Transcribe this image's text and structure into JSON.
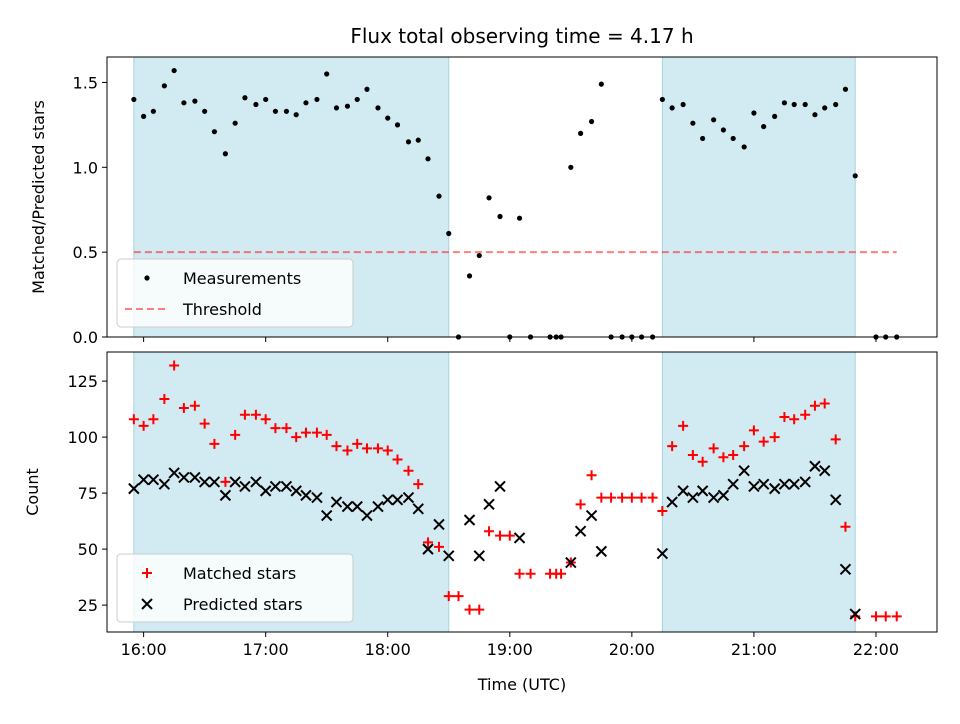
{
  "chart_data": [
    {
      "type": "scatter",
      "title": "Flux total observing time = 4.17 h",
      "ylabel": "Matched/Predicted stars",
      "xlabel": "",
      "xlim": [
        15.7,
        22.5
      ],
      "ylim": [
        0,
        1.65
      ],
      "x_ticks": [
        16,
        17,
        18,
        19,
        20,
        21,
        22
      ],
      "y_ticks": [
        0.0,
        0.5,
        1.0,
        1.5
      ],
      "y_tick_labels": [
        "0.0",
        "0.5",
        "1.0",
        "1.5"
      ],
      "shaded_spans": [
        [
          15.92,
          18.5
        ],
        [
          20.25,
          21.83
        ]
      ],
      "shade_color": "#add8e6",
      "threshold": 0.5,
      "threshold_xrange": [
        15.92,
        22.17
      ],
      "legend": {
        "position": "lower-left",
        "entries": [
          "Measurements",
          "Threshold"
        ]
      },
      "series": [
        {
          "name": "Measurements",
          "color": "#000000",
          "marker": "dot",
          "points": [
            [
              15.92,
              1.4
            ],
            [
              16.0,
              1.3
            ],
            [
              16.08,
              1.33
            ],
            [
              16.17,
              1.48
            ],
            [
              16.25,
              1.57
            ],
            [
              16.33,
              1.38
            ],
            [
              16.42,
              1.39
            ],
            [
              16.5,
              1.33
            ],
            [
              16.58,
              1.21
            ],
            [
              16.67,
              1.08
            ],
            [
              16.75,
              1.26
            ],
            [
              16.83,
              1.41
            ],
            [
              16.92,
              1.37
            ],
            [
              17.0,
              1.4
            ],
            [
              17.08,
              1.33
            ],
            [
              17.17,
              1.33
            ],
            [
              17.25,
              1.31
            ],
            [
              17.33,
              1.38
            ],
            [
              17.42,
              1.4
            ],
            [
              17.5,
              1.55
            ],
            [
              17.58,
              1.35
            ],
            [
              17.67,
              1.36
            ],
            [
              17.75,
              1.4
            ],
            [
              17.83,
              1.46
            ],
            [
              17.92,
              1.35
            ],
            [
              18.0,
              1.29
            ],
            [
              18.08,
              1.25
            ],
            [
              18.17,
              1.15
            ],
            [
              18.25,
              1.16
            ],
            [
              18.33,
              1.05
            ],
            [
              18.42,
              0.83
            ],
            [
              18.5,
              0.61
            ],
            [
              18.58,
              0.0
            ],
            [
              18.67,
              0.36
            ],
            [
              18.75,
              0.48
            ],
            [
              18.83,
              0.82
            ],
            [
              18.92,
              0.71
            ],
            [
              19.0,
              0.0
            ],
            [
              19.08,
              0.7
            ],
            [
              19.17,
              0.0
            ],
            [
              19.33,
              0.0
            ],
            [
              19.38,
              0.0
            ],
            [
              19.42,
              0.0
            ],
            [
              19.5,
              1.0
            ],
            [
              19.58,
              1.2
            ],
            [
              19.67,
              1.27
            ],
            [
              19.75,
              1.49
            ],
            [
              19.83,
              0.0
            ],
            [
              19.92,
              0.0
            ],
            [
              20.0,
              0.0
            ],
            [
              20.08,
              0.0
            ],
            [
              20.17,
              0.0
            ],
            [
              20.25,
              1.4
            ],
            [
              20.33,
              1.35
            ],
            [
              20.42,
              1.37
            ],
            [
              20.5,
              1.26
            ],
            [
              20.58,
              1.17
            ],
            [
              20.67,
              1.28
            ],
            [
              20.75,
              1.22
            ],
            [
              20.83,
              1.17
            ],
            [
              20.92,
              1.12
            ],
            [
              21.0,
              1.32
            ],
            [
              21.08,
              1.24
            ],
            [
              21.17,
              1.3
            ],
            [
              21.25,
              1.38
            ],
            [
              21.33,
              1.37
            ],
            [
              21.42,
              1.37
            ],
            [
              21.5,
              1.31
            ],
            [
              21.58,
              1.35
            ],
            [
              21.67,
              1.37
            ],
            [
              21.75,
              1.46
            ],
            [
              21.83,
              0.95
            ],
            [
              22.0,
              0.0
            ],
            [
              22.08,
              0.0
            ],
            [
              22.17,
              0.0
            ]
          ]
        }
      ]
    },
    {
      "type": "scatter",
      "title": "",
      "xlabel": "Time (UTC)",
      "ylabel": "Count",
      "xlim": [
        15.7,
        22.5
      ],
      "ylim": [
        13,
        138
      ],
      "x_ticks": [
        16,
        17,
        18,
        19,
        20,
        21,
        22
      ],
      "x_tick_labels": [
        "16:00",
        "17:00",
        "18:00",
        "19:00",
        "20:00",
        "21:00",
        "22:00"
      ],
      "y_ticks": [
        25,
        50,
        75,
        100,
        125
      ],
      "y_tick_labels": [
        "25",
        "50",
        "75",
        "100",
        "125"
      ],
      "shaded_spans": [
        [
          15.92,
          18.5
        ],
        [
          20.25,
          21.83
        ]
      ],
      "shade_color": "#add8e6",
      "legend": {
        "position": "lower-left",
        "entries": [
          "Matched stars",
          "Predicted stars"
        ]
      },
      "series": [
        {
          "name": "Matched stars",
          "color": "#ff0000",
          "marker": "plus",
          "points": [
            [
              15.92,
              108
            ],
            [
              16.0,
              105
            ],
            [
              16.08,
              108
            ],
            [
              16.17,
              117
            ],
            [
              16.25,
              132
            ],
            [
              16.33,
              113
            ],
            [
              16.42,
              114
            ],
            [
              16.5,
              106
            ],
            [
              16.58,
              97
            ],
            [
              16.67,
              80
            ],
            [
              16.75,
              101
            ],
            [
              16.83,
              110
            ],
            [
              16.92,
              110
            ],
            [
              17.0,
              108
            ],
            [
              17.08,
              104
            ],
            [
              17.17,
              104
            ],
            [
              17.25,
              100
            ],
            [
              17.33,
              102
            ],
            [
              17.42,
              102
            ],
            [
              17.5,
              101
            ],
            [
              17.58,
              96
            ],
            [
              17.67,
              94
            ],
            [
              17.75,
              97
            ],
            [
              17.83,
              95
            ],
            [
              17.92,
              95
            ],
            [
              18.0,
              94
            ],
            [
              18.08,
              90
            ],
            [
              18.17,
              85
            ],
            [
              18.25,
              79
            ],
            [
              18.33,
              53
            ],
            [
              18.42,
              51
            ],
            [
              18.5,
              29
            ],
            [
              18.58,
              29
            ],
            [
              18.67,
              23
            ],
            [
              18.75,
              23
            ],
            [
              18.83,
              58
            ],
            [
              18.92,
              56
            ],
            [
              19.0,
              56
            ],
            [
              19.08,
              39
            ],
            [
              19.17,
              39
            ],
            [
              19.33,
              39
            ],
            [
              19.38,
              39
            ],
            [
              19.42,
              39
            ],
            [
              19.5,
              44
            ],
            [
              19.58,
              70
            ],
            [
              19.67,
              83
            ],
            [
              19.75,
              73
            ],
            [
              19.83,
              73
            ],
            [
              19.92,
              73
            ],
            [
              20.0,
              73
            ],
            [
              20.08,
              73
            ],
            [
              20.17,
              73
            ],
            [
              20.25,
              67
            ],
            [
              20.33,
              96
            ],
            [
              20.42,
              105
            ],
            [
              20.5,
              92
            ],
            [
              20.58,
              89
            ],
            [
              20.67,
              95
            ],
            [
              20.75,
              91
            ],
            [
              20.83,
              92
            ],
            [
              20.92,
              96
            ],
            [
              21.0,
              103
            ],
            [
              21.08,
              98
            ],
            [
              21.17,
              100
            ],
            [
              21.25,
              109
            ],
            [
              21.33,
              108
            ],
            [
              21.42,
              110
            ],
            [
              21.5,
              114
            ],
            [
              21.58,
              115
            ],
            [
              21.67,
              99
            ],
            [
              21.75,
              60
            ],
            [
              21.83,
              20
            ],
            [
              22.0,
              20
            ],
            [
              22.08,
              20
            ],
            [
              22.17,
              20
            ]
          ]
        },
        {
          "name": "Predicted stars",
          "color": "#000000",
          "marker": "x",
          "points": [
            [
              15.92,
              77
            ],
            [
              16.0,
              81
            ],
            [
              16.08,
              81
            ],
            [
              16.17,
              79
            ],
            [
              16.25,
              84
            ],
            [
              16.33,
              82
            ],
            [
              16.42,
              82
            ],
            [
              16.5,
              80
            ],
            [
              16.58,
              80
            ],
            [
              16.67,
              74
            ],
            [
              16.75,
              80
            ],
            [
              16.83,
              78
            ],
            [
              16.92,
              80
            ],
            [
              17.0,
              76
            ],
            [
              17.08,
              78
            ],
            [
              17.17,
              78
            ],
            [
              17.25,
              76
            ],
            [
              17.33,
              74
            ],
            [
              17.42,
              73
            ],
            [
              17.5,
              65
            ],
            [
              17.58,
              71
            ],
            [
              17.67,
              69
            ],
            [
              17.75,
              69
            ],
            [
              17.83,
              65
            ],
            [
              17.92,
              69
            ],
            [
              18.0,
              72
            ],
            [
              18.08,
              72
            ],
            [
              18.17,
              73
            ],
            [
              18.25,
              68
            ],
            [
              18.33,
              50
            ],
            [
              18.42,
              61
            ],
            [
              18.5,
              47
            ],
            [
              18.67,
              63
            ],
            [
              18.75,
              47
            ],
            [
              18.83,
              70
            ],
            [
              18.92,
              78
            ],
            [
              19.08,
              55
            ],
            [
              19.5,
              44
            ],
            [
              19.58,
              58
            ],
            [
              19.67,
              65
            ],
            [
              19.75,
              49
            ],
            [
              20.25,
              48
            ],
            [
              20.33,
              71
            ],
            [
              20.42,
              76
            ],
            [
              20.5,
              73
            ],
            [
              20.58,
              76
            ],
            [
              20.67,
              73
            ],
            [
              20.75,
              74
            ],
            [
              20.83,
              79
            ],
            [
              20.92,
              85
            ],
            [
              21.0,
              78
            ],
            [
              21.08,
              79
            ],
            [
              21.17,
              77
            ],
            [
              21.25,
              79
            ],
            [
              21.33,
              79
            ],
            [
              21.42,
              80
            ],
            [
              21.5,
              87
            ],
            [
              21.58,
              85
            ],
            [
              21.67,
              72
            ],
            [
              21.75,
              41
            ],
            [
              21.83,
              21
            ]
          ]
        }
      ]
    }
  ]
}
